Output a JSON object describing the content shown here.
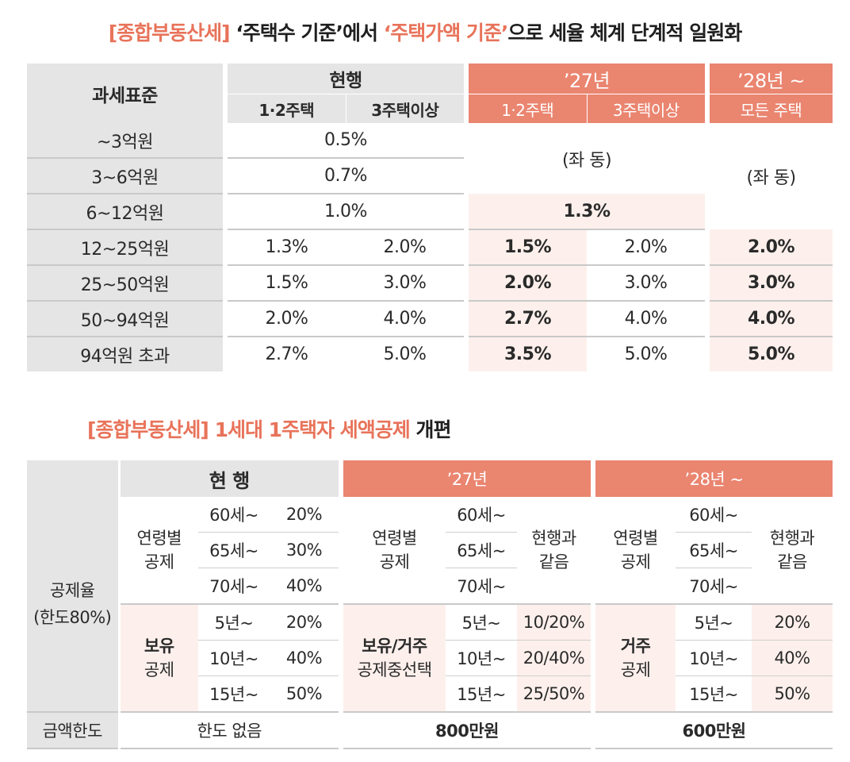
{
  "title1": {
    "tag": "[종합부동산세]",
    "part1": " ‘주택수 기준’에서 ",
    "highlight": "‘주택가액 기준’",
    "part2": "으로 세율 체계 단계적 일원화"
  },
  "table1": {
    "col_taxbase": "과세표준",
    "col_current": "현행",
    "col_27": "’27년",
    "col_28": "’28년 ~",
    "sub_12": "1·2주택",
    "sub_3": "3주택이상",
    "sub_12b": "1·2주택",
    "sub_3b": "3주택이상",
    "sub_all": "모든 주택",
    "same": "(좌 동)",
    "same2": "(좌 동)",
    "rows": [
      {
        "base": "~3억원",
        "cur": "0.5%"
      },
      {
        "base": "3~6억원",
        "cur": "0.7%"
      },
      {
        "base": "6~12억원",
        "cur": "1.0%",
        "y27": "1.3%"
      },
      {
        "base": "12~25억원",
        "c12": "1.3%",
        "c3": "2.0%",
        "y27a": "1.5%",
        "y27b": "2.0%",
        "y28": "2.0%"
      },
      {
        "base": "25~50억원",
        "c12": "1.5%",
        "c3": "3.0%",
        "y27a": "2.0%",
        "y27b": "3.0%",
        "y28": "3.0%"
      },
      {
        "base": "50~94억원",
        "c12": "2.0%",
        "c3": "4.0%",
        "y27a": "2.7%",
        "y27b": "4.0%",
        "y28": "4.0%"
      },
      {
        "base": "94억원 초과",
        "c12": "2.7%",
        "c3": "5.0%",
        "y27a": "3.5%",
        "y27b": "5.0%",
        "y28": "5.0%"
      }
    ]
  },
  "title2": {
    "tag": "[종합부동산세]",
    "part1": " 1세대 1주택자 세액공제",
    "part2": " 개편"
  },
  "table2": {
    "h_current": "현 행",
    "h_27": "’27년",
    "h_28": "’28년 ~",
    "rate_label": "공제율",
    "rate_limit": "(한도80%)",
    "age_label1": "연령별",
    "age_label2": "공제",
    "ages": [
      "60세~",
      "65세~",
      "70세~"
    ],
    "age_rates": [
      "20%",
      "30%",
      "40%"
    ],
    "same_as_current1": "현행과",
    "same_as_current2": "같음",
    "hold_label1": "보유",
    "hold_label2": "공제",
    "hold_years": [
      "5년~",
      "10년~",
      "15년~"
    ],
    "hold_rates": [
      "20%",
      "40%",
      "50%"
    ],
    "choice_label1": "보유/거주",
    "choice_label2": "공제중선택",
    "choice_rates": [
      "10/20%",
      "20/40%",
      "25/50%"
    ],
    "res_label1": "거주",
    "res_label2": "공제",
    "res_rates": [
      "20%",
      "40%",
      "50%"
    ],
    "limit_label": "금액한도",
    "limit_current": "한도 없음",
    "limit_27": "800만원",
    "limit_28": "600만원"
  }
}
